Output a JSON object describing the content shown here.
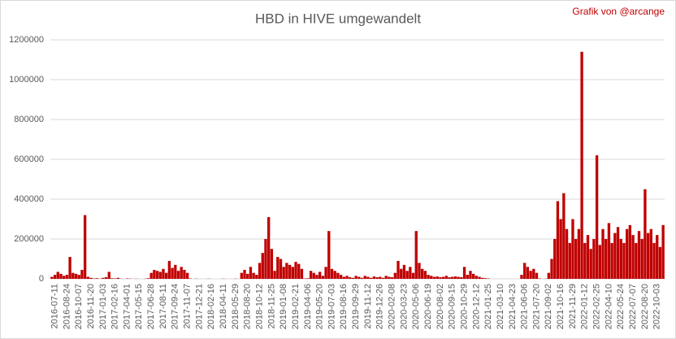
{
  "chart_data": {
    "type": "bar",
    "title": "HBD in HIVE umgewandelt",
    "annotation": "Grafik von @arcange",
    "color": "#c00000",
    "grid": true,
    "ylim": [
      0,
      1200000
    ],
    "yticks": [
      0,
      200000,
      400000,
      600000,
      800000,
      1000000,
      1200000
    ],
    "categories": [
      null,
      "2016-07-11",
      null,
      null,
      null,
      "2016-08-24",
      null,
      null,
      null,
      "2016-10-07",
      null,
      null,
      null,
      "2016-11-20",
      null,
      null,
      null,
      "2017-01-03",
      null,
      null,
      null,
      "2017-02-16",
      null,
      null,
      null,
      "2017-04-01",
      null,
      null,
      null,
      "2017-05-15",
      null,
      null,
      null,
      "2017-06-28",
      null,
      null,
      null,
      "2017-08-11",
      null,
      null,
      null,
      "2017-09-24",
      null,
      null,
      null,
      "2017-11-07",
      null,
      null,
      null,
      "2017-12-21",
      null,
      null,
      null,
      "2018-02-16",
      null,
      null,
      null,
      "2018-04-11",
      null,
      null,
      null,
      "2018-05-29",
      null,
      null,
      null,
      "2018-08-20",
      null,
      null,
      null,
      "2018-10-12",
      null,
      null,
      null,
      "2018-11-25",
      null,
      null,
      null,
      "2019-01-08",
      null,
      null,
      null,
      "2019-02-21",
      null,
      null,
      null,
      "2019-04-06",
      null,
      null,
      null,
      "2019-05-20",
      null,
      null,
      null,
      "2019-07-03",
      null,
      null,
      null,
      "2019-08-16",
      null,
      null,
      null,
      "2019-09-29",
      null,
      null,
      null,
      "2019-11-12",
      null,
      null,
      null,
      "2019-12-26",
      null,
      null,
      null,
      "2020-02-08",
      null,
      null,
      null,
      "2020-03-23",
      null,
      null,
      null,
      "2020-05-06",
      null,
      null,
      null,
      "2020-06-19",
      null,
      null,
      null,
      "2020-08-02",
      null,
      null,
      null,
      "2020-09-15",
      null,
      null,
      null,
      "2020-10-29",
      null,
      null,
      null,
      "2020-12-12",
      null,
      null,
      null,
      "2021-01-25",
      null,
      null,
      null,
      "2021-03-10",
      null,
      null,
      null,
      "2021-04-23",
      null,
      null,
      null,
      "2021-06-06",
      null,
      null,
      null,
      "2021-07-20",
      null,
      null,
      null,
      "2021-09-02",
      null,
      null,
      null,
      "2021-10-16",
      null,
      null,
      null,
      "2021-11-29",
      null,
      null,
      null,
      "2022-01-12",
      null,
      null,
      null,
      "2022-02-25",
      null,
      null,
      null,
      "2022-04-10",
      null,
      null,
      null,
      "2022-05-24",
      null,
      null,
      null,
      "2022-07-07",
      null,
      null,
      null,
      "2022-08-20",
      null,
      null,
      null,
      "2022-10-03",
      null,
      null
    ],
    "values": [
      10000,
      20000,
      35000,
      25000,
      15000,
      20000,
      110000,
      30000,
      25000,
      20000,
      45000,
      320000,
      10000,
      5000,
      2000,
      3000,
      1000,
      5000,
      8000,
      35000,
      3000,
      2000,
      5000,
      1000,
      0,
      2000,
      1000,
      0,
      1000,
      0,
      0,
      1000,
      3000,
      30000,
      45000,
      40000,
      35000,
      50000,
      30000,
      90000,
      55000,
      70000,
      40000,
      60000,
      45000,
      30000,
      2000,
      0,
      1000,
      0,
      0,
      0,
      1000,
      0,
      0,
      0,
      0,
      1000,
      0,
      0,
      0,
      1000,
      0,
      30000,
      45000,
      25000,
      60000,
      30000,
      20000,
      80000,
      130000,
      200000,
      310000,
      150000,
      40000,
      110000,
      100000,
      60000,
      80000,
      70000,
      60000,
      85000,
      75000,
      50000,
      2000,
      3000,
      40000,
      30000,
      20000,
      35000,
      15000,
      60000,
      240000,
      50000,
      40000,
      30000,
      20000,
      10000,
      15000,
      8000,
      5000,
      15000,
      10000,
      5000,
      15000,
      10000,
      5000,
      12000,
      8000,
      10000,
      5000,
      15000,
      10000,
      8000,
      30000,
      90000,
      50000,
      70000,
      40000,
      60000,
      30000,
      240000,
      80000,
      50000,
      40000,
      20000,
      15000,
      10000,
      12000,
      8000,
      10000,
      15000,
      8000,
      10000,
      12000,
      10000,
      8000,
      60000,
      20000,
      40000,
      25000,
      15000,
      10000,
      5000,
      3000,
      2000,
      0,
      0,
      0,
      0,
      0,
      0,
      0,
      0,
      0,
      0,
      20000,
      80000,
      60000,
      40000,
      50000,
      30000,
      2000,
      0,
      1000,
      30000,
      100000,
      200000,
      390000,
      300000,
      430000,
      250000,
      180000,
      300000,
      200000,
      250000,
      1140000,
      180000,
      220000,
      150000,
      200000,
      620000,
      170000,
      250000,
      200000,
      280000,
      180000,
      230000,
      260000,
      200000,
      180000,
      250000,
      270000,
      220000,
      180000,
      240000,
      200000,
      450000,
      230000,
      250000,
      180000,
      220000,
      160000,
      270000
    ]
  }
}
